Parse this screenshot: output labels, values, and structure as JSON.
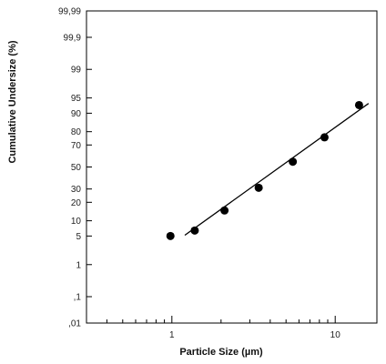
{
  "chart_data": {
    "type": "scatter",
    "xlabel": "Particle Size (µm)",
    "ylabel": "Cumulative Undersize (%)",
    "x_scale": "log",
    "y_scale": "probability",
    "xlim": [
      0.3,
      18
    ],
    "ylim": [
      0.01,
      99.99
    ],
    "x_ticks": [
      {
        "value": 1,
        "label": "1"
      },
      {
        "value": 10,
        "label": "10"
      }
    ],
    "y_ticks": [
      {
        "value": 0.01,
        "label": ",01"
      },
      {
        "value": 0.1,
        "label": ",1"
      },
      {
        "value": 1,
        "label": "1"
      },
      {
        "value": 5,
        "label": "5"
      },
      {
        "value": 10,
        "label": "10"
      },
      {
        "value": 20,
        "label": "20"
      },
      {
        "value": 30,
        "label": "30"
      },
      {
        "value": 50,
        "label": "50"
      },
      {
        "value": 70,
        "label": "70"
      },
      {
        "value": 80,
        "label": "80"
      },
      {
        "value": 90,
        "label": "90"
      },
      {
        "value": 95,
        "label": "95"
      },
      {
        "value": 99,
        "label": "99"
      },
      {
        "value": 99.9,
        "label": "99,9"
      },
      {
        "value": 99.99,
        "label": "99,99"
      }
    ],
    "grid": false,
    "series": [
      {
        "points": [
          {
            "x": 0.98,
            "y": 5
          },
          {
            "x": 1.38,
            "y": 6.5
          },
          {
            "x": 2.1,
            "y": 15
          },
          {
            "x": 3.4,
            "y": 31
          },
          {
            "x": 5.5,
            "y": 55
          },
          {
            "x": 8.6,
            "y": 76
          },
          {
            "x": 14,
            "y": 93
          }
        ]
      }
    ],
    "fit_line": {
      "points": [
        {
          "x": 1.2,
          "y": 5.2
        },
        {
          "x": 16,
          "y": 93.5
        }
      ]
    },
    "colors": {
      "marker": "#000000",
      "line": "#000000",
      "axis": "#000000"
    }
  }
}
